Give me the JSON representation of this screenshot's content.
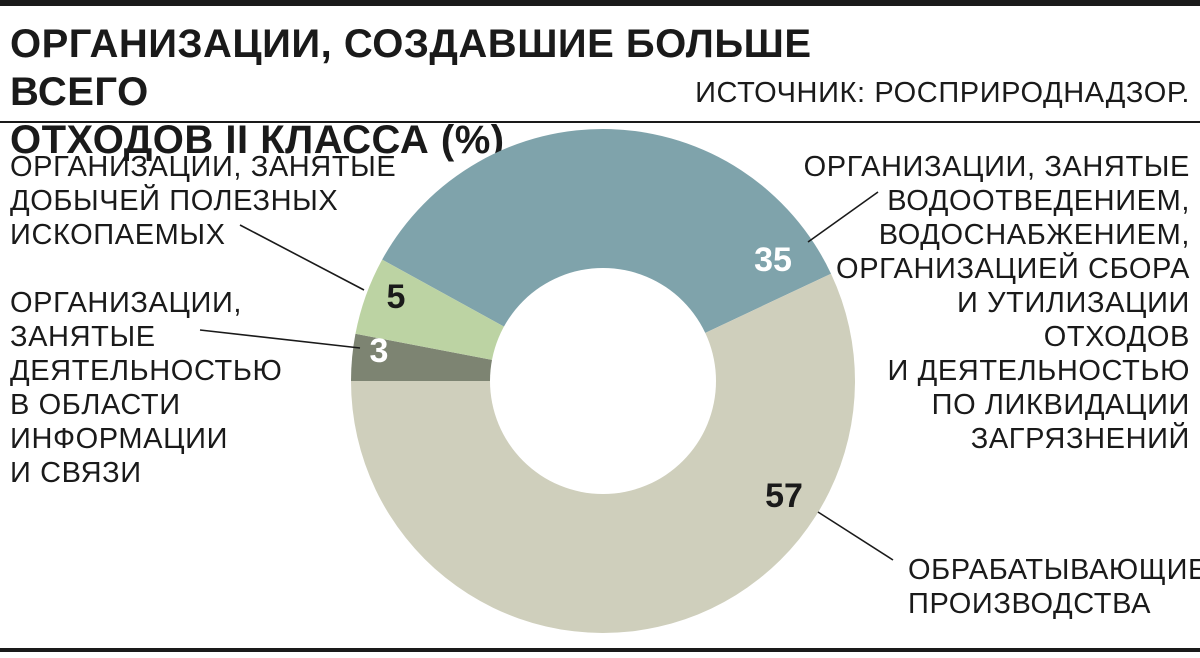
{
  "title_lines": [
    "ОРГАНИЗАЦИИ, СОЗДАВШИЕ БОЛЬШЕ ВСЕГО",
    "ОТХОДОВ II КЛАССА (%)"
  ],
  "source": "ИСТОЧНИК: РОСПРИРОДНАДЗОР.",
  "colors": {
    "water": "#7fa3ab",
    "manufacturing": "#cfcfbc",
    "mining": "#bcd3a3",
    "it": "#7d8472",
    "rule": "#1a1a1a",
    "hole": "#ffffff"
  },
  "labels": {
    "mining": [
      "ОРГАНИЗАЦИИ, ЗАНЯТЫЕ",
      "ДОБЫЧЕЙ ПОЛЕЗНЫХ",
      "ИСКОПАЕМЫХ"
    ],
    "it": [
      "ОРГАНИЗАЦИИ,",
      "ЗАНЯТЫЕ",
      "ДЕЯТЕЛЬНОСТЬЮ",
      "В ОБЛАСТИ",
      "ИНФОРМАЦИИ",
      "И СВЯЗИ"
    ],
    "water": [
      "ОРГАНИЗАЦИИ, ЗАНЯТЫЕ",
      "ВОДООТВЕДЕНИЕМ,",
      "ВОДОСНАБЖЕНИЕМ,",
      "ОРГАНИЗАЦИЕЙ СБОРА",
      "И УТИЛИЗАЦИИ",
      "ОТХОДОВ",
      "И ДЕЯТЕЛЬНОСТЬЮ",
      "ПО ЛИКВИДАЦИИ",
      "ЗАГРЯЗНЕНИЙ"
    ],
    "manufacturing": [
      "ОБРАБАТЫВАЮЩИЕ",
      "ПРОИЗВОДСТВА"
    ]
  },
  "chart_data": {
    "type": "pie",
    "donut": true,
    "title": "ОРГАНИЗАЦИИ, СОЗДАВШИЕ БОЛЬШЕ ВСЕГО ОТХОДОВ II КЛАССА (%)",
    "source": "ИСТОЧНИК: РОСПРИРОДНАДЗОР.",
    "slices": [
      {
        "key": "water",
        "value": 35,
        "value_label": "35",
        "label": "ОРГАНИЗАЦИИ, ЗАНЯТЫЕ ВОДООТВЕДЕНИЕМ, ВОДОСНАБЖЕНИЕМ, ОРГАНИЗАЦИЕЙ СБОРА И УТИЛИЗАЦИИ ОТХОДОВ И ДЕЯТЕЛЬНОСТЬЮ ПО ЛИКВИДАЦИИ ЗАГРЯЗНЕНИЙ",
        "color": "#7fa3ab",
        "value_color": "#ffffff"
      },
      {
        "key": "manufacturing",
        "value": 57,
        "value_label": "57",
        "label": "ОБРАБАТЫВАЮЩИЕ ПРОИЗВОДСТВА",
        "color": "#cfcfbc",
        "value_color": "#1a1a1a"
      },
      {
        "key": "it",
        "value": 3,
        "value_label": "3",
        "label": "ОРГАНИЗАЦИИ, ЗАНЯТЫЕ ДЕЯТЕЛЬНОСТЬЮ В ОБЛАСТИ ИНФОРМАЦИИ И СВЯЗИ",
        "color": "#7d8472",
        "value_color": "#ffffff"
      },
      {
        "key": "mining",
        "value": 5,
        "value_label": "5",
        "label": "ОРГАНИЗАЦИИ, ЗАНЯТЫЕ ДОБЫЧЕЙ ПОЛЕЗНЫХ ИСКОПАЕМЫХ",
        "color": "#bcd3a3",
        "value_color": "#1a1a1a"
      }
    ]
  }
}
